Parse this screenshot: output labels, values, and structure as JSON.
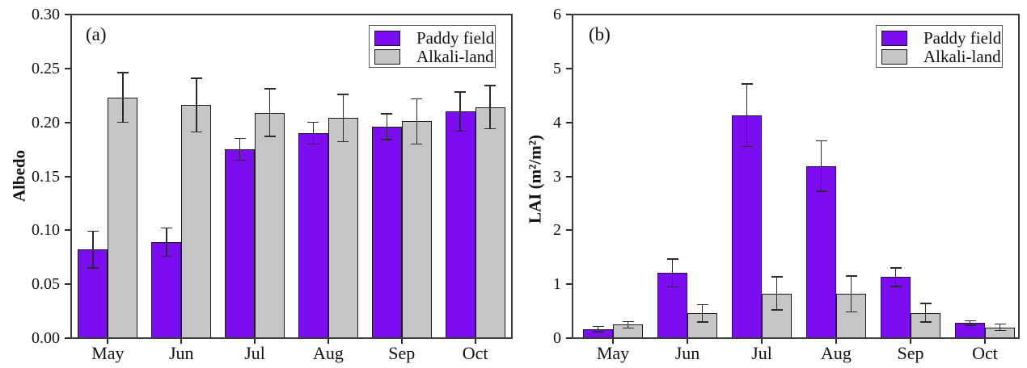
{
  "figure": {
    "background": "#ffffff",
    "frame_color": "#3d3d3d",
    "tick_color": "#2b2b2b",
    "error_bar_color": "#2b2b2b",
    "bar_border_color": "#1a1a1a",
    "text_color": "#111111"
  },
  "chart_data": [
    {
      "type": "bar",
      "panel_label": "(a)",
      "title": "",
      "xlabel": "",
      "ylabel": "Albedo",
      "ylim": [
        0,
        0.3
      ],
      "yticks": [
        "0.00",
        "0.05",
        "0.10",
        "0.15",
        "0.20",
        "0.25",
        "0.30"
      ],
      "grid": false,
      "legend_position": "top-right-inside",
      "categories": [
        "May",
        "Jun",
        "Jul",
        "Aug",
        "Sep",
        "Oct"
      ],
      "series": [
        {
          "name": "Paddy field",
          "color": "#7C0CF2",
          "values": [
            0.082,
            0.089,
            0.175,
            0.19,
            0.196,
            0.21
          ],
          "errors": [
            0.017,
            0.013,
            0.01,
            0.01,
            0.012,
            0.018
          ]
        },
        {
          "name": "Alkali-land",
          "color": "#C6C6C6",
          "values": [
            0.223,
            0.216,
            0.209,
            0.204,
            0.201,
            0.214
          ],
          "errors": [
            0.023,
            0.025,
            0.022,
            0.022,
            0.021,
            0.02
          ]
        }
      ]
    },
    {
      "type": "bar",
      "panel_label": "(b)",
      "title": "",
      "xlabel": "",
      "ylabel": "LAI (m²/m²)",
      "ylim": [
        0,
        6
      ],
      "yticks": [
        "0",
        "1",
        "2",
        "3",
        "4",
        "5",
        "6"
      ],
      "grid": false,
      "legend_position": "top-right-inside",
      "categories": [
        "May",
        "Jun",
        "Jul",
        "Aug",
        "Sep",
        "Oct"
      ],
      "series": [
        {
          "name": "Paddy field",
          "color": "#7C0CF2",
          "values": [
            0.17,
            1.21,
            4.13,
            3.19,
            1.13,
            0.28
          ],
          "errors": [
            0.05,
            0.26,
            0.58,
            0.47,
            0.17,
            0.04
          ]
        },
        {
          "name": "Alkali-land",
          "color": "#C6C6C6",
          "values": [
            0.25,
            0.46,
            0.83,
            0.82,
            0.47,
            0.2
          ],
          "errors": [
            0.06,
            0.16,
            0.31,
            0.33,
            0.17,
            0.06
          ]
        }
      ]
    }
  ]
}
